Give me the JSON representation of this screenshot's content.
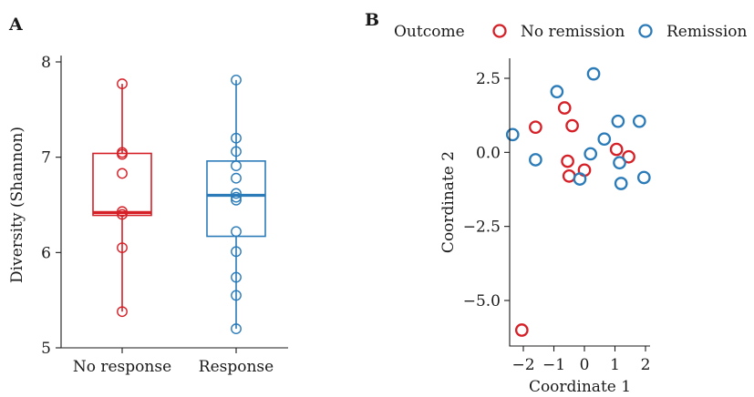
{
  "chart_data": [
    {
      "panel_label": "A",
      "type": "boxplot",
      "xlabel": "",
      "ylabel": "Diversity (Shannon)",
      "ylim": [
        5,
        8
      ],
      "yticks": [
        5,
        6,
        7,
        8
      ],
      "categories": [
        "No response",
        "Response"
      ],
      "colors": [
        "#d62027",
        "#2b7bb9"
      ],
      "boxes": [
        {
          "q1": 6.39,
          "median": 6.42,
          "q3": 7.04,
          "whisker_low": 5.38,
          "whisker_high": 7.77
        },
        {
          "q1": 6.17,
          "median": 6.6,
          "q3": 6.96,
          "whisker_low": 5.2,
          "whisker_high": 7.81
        }
      ],
      "points": [
        [
          7.77,
          7.05,
          7.03,
          6.83,
          6.43,
          6.4,
          6.05,
          5.38
        ],
        [
          7.81,
          7.2,
          7.06,
          6.91,
          6.78,
          6.62,
          6.58,
          6.55,
          6.22,
          6.01,
          5.74,
          5.55,
          5.2
        ]
      ]
    },
    {
      "panel_label": "B",
      "type": "scatter",
      "xlabel": "Coordinate 1",
      "ylabel": "Coordinate 2",
      "xlim": [
        -2.6,
        2.2
      ],
      "ylim": [
        -6.5,
        3.3
      ],
      "xticks": [
        -2,
        -1,
        0,
        1,
        2
      ],
      "yticks": [
        2.5,
        0.0,
        -2.5,
        -5.0
      ],
      "ytick_labels": [
        "2.5",
        "0.0",
        "−2.5",
        "−5.0"
      ],
      "xtick_labels": [
        "−2",
        "−1",
        "0",
        "1",
        "2"
      ],
      "legend": {
        "title": "Outcome",
        "position": "top"
      },
      "series": [
        {
          "name": "No remission",
          "color": "#d62027",
          "points": [
            {
              "x": -1.6,
              "y": 0.85
            },
            {
              "x": -0.65,
              "y": 1.5
            },
            {
              "x": -0.4,
              "y": 0.9
            },
            {
              "x": -0.55,
              "y": -0.3
            },
            {
              "x": -0.5,
              "y": -0.8
            },
            {
              "x": 0.0,
              "y": -0.6
            },
            {
              "x": 1.05,
              "y": 0.1
            },
            {
              "x": 1.45,
              "y": -0.15
            },
            {
              "x": -2.05,
              "y": -6.0
            }
          ]
        },
        {
          "name": "Remission",
          "color": "#2b7bb9",
          "points": [
            {
              "x": -2.35,
              "y": 0.6
            },
            {
              "x": -1.6,
              "y": -0.25
            },
            {
              "x": -0.9,
              "y": 2.05
            },
            {
              "x": 0.3,
              "y": 2.65
            },
            {
              "x": 0.2,
              "y": -0.05
            },
            {
              "x": 0.65,
              "y": 0.45
            },
            {
              "x": -0.15,
              "y": -0.9
            },
            {
              "x": 1.1,
              "y": 1.05
            },
            {
              "x": 1.8,
              "y": 1.05
            },
            {
              "x": 1.15,
              "y": -0.35
            },
            {
              "x": 1.2,
              "y": -1.05
            },
            {
              "x": 1.95,
              "y": -0.85
            }
          ]
        }
      ]
    }
  ]
}
